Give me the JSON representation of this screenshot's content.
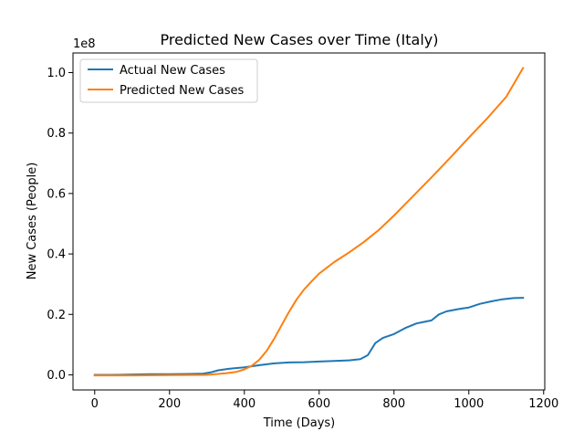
{
  "chart_data": {
    "type": "line",
    "title": "Predicted New Cases over Time (Italy)",
    "xlabel": "Time (Days)",
    "ylabel": "New Cases (People)",
    "offset_text": "1e8",
    "xlim": [
      -58,
      1203
    ],
    "ylim": [
      -0.05,
      1.065
    ],
    "x_ticks": [
      0,
      200,
      400,
      600,
      800,
      1000,
      1200
    ],
    "y_ticks": [
      0.0,
      0.2,
      0.4,
      0.6,
      0.8,
      1.0
    ],
    "x_tick_labels": [
      "0",
      "200",
      "400",
      "600",
      "800",
      "1000",
      "1200"
    ],
    "y_tick_labels": [
      "0.0",
      "0.2",
      "0.4",
      "0.6",
      "0.8",
      "1.0"
    ],
    "legend_placement": "top-left",
    "grid": false,
    "series": [
      {
        "name": "Actual New Cases",
        "color": "#1f77b4",
        "x": [
          0,
          50,
          100,
          150,
          200,
          250,
          290,
          310,
          330,
          360,
          400,
          440,
          480,
          520,
          560,
          600,
          640,
          680,
          710,
          730,
          750,
          770,
          800,
          830,
          860,
          880,
          900,
          920,
          940,
          970,
          1000,
          1030,
          1060,
          1090,
          1120,
          1145
        ],
        "y": [
          0.0,
          0.0,
          0.001,
          0.002,
          0.002,
          0.003,
          0.004,
          0.008,
          0.015,
          0.02,
          0.025,
          0.032,
          0.038,
          0.041,
          0.042,
          0.044,
          0.046,
          0.048,
          0.052,
          0.065,
          0.105,
          0.122,
          0.135,
          0.155,
          0.17,
          0.175,
          0.18,
          0.2,
          0.21,
          0.217,
          0.223,
          0.235,
          0.243,
          0.25,
          0.254,
          0.255
        ]
      },
      {
        "name": "Predicted New Cases",
        "color": "#ff7f0e",
        "x": [
          0,
          100,
          200,
          300,
          350,
          380,
          400,
          420,
          440,
          460,
          480,
          500,
          520,
          540,
          560,
          580,
          600,
          640,
          680,
          720,
          760,
          800,
          850,
          900,
          950,
          1000,
          1050,
          1100,
          1145
        ],
        "y": [
          -0.002,
          -0.002,
          -0.001,
          0.0,
          0.005,
          0.01,
          0.018,
          0.03,
          0.05,
          0.08,
          0.12,
          0.165,
          0.21,
          0.25,
          0.283,
          0.31,
          0.335,
          0.373,
          0.405,
          0.44,
          0.48,
          0.527,
          0.59,
          0.653,
          0.718,
          0.785,
          0.85,
          0.92,
          1.015
        ]
      }
    ]
  }
}
